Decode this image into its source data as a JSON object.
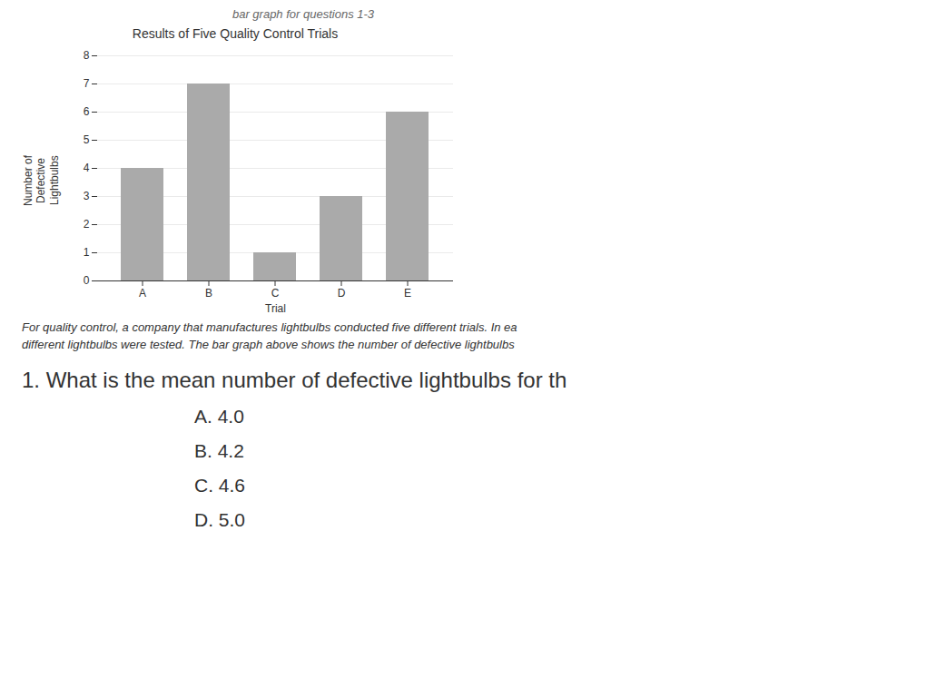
{
  "chart_data": {
    "type": "bar",
    "title": "Results of Five Quality Control Trials",
    "xlabel": "Trial",
    "ylabel": "Number of\nDefective\nLightbulbs",
    "categories": [
      "A",
      "B",
      "C",
      "D",
      "E"
    ],
    "values": [
      4,
      7,
      1,
      3,
      6
    ],
    "color": "#aaaaaa",
    "ylim": [
      0,
      8
    ],
    "yticks": [
      0,
      1,
      2,
      3,
      4,
      5,
      6,
      7,
      8
    ],
    "grid": true,
    "annotations": [
      "bar graph for questions 1-3",
      "For quality control, a company that manufactures lightbulbs conducted five different trials. In ea",
      "different lightbulbs were tested. The bar graph above shows the number of defective lightbulbs",
      "1.  What is the mean number of defective lightbulbs for th",
      "A.   4.0",
      "B.   4.2",
      "C.   4.6",
      "D.   5.0"
    ]
  }
}
